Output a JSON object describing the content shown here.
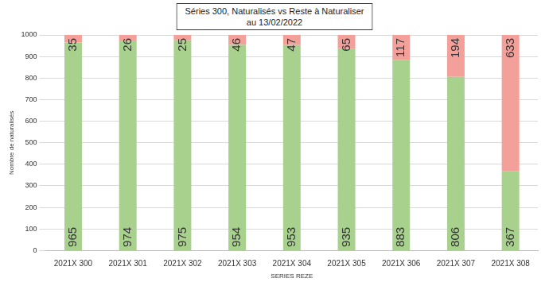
{
  "chart_data": {
    "type": "bar",
    "title": "Séries 300, Naturalisés vs Reste à Naturaliser",
    "subtitle": "au 13/02/2022",
    "x_label": "SERIES REZE",
    "y_label": "Nombre de naturalisés",
    "categories": [
      "2021X 300",
      "2021X 301",
      "2021X 302",
      "2021X 303",
      "2021X 304",
      "2021X 305",
      "2021X 306",
      "2021X 307",
      "2021X 308"
    ],
    "series": [
      {
        "color": "#a9d18e",
        "values": [
          965,
          974,
          975,
          954,
          953,
          935,
          883,
          806,
          367
        ]
      },
      {
        "color": "#f4a09a",
        "values": [
          35,
          26,
          25,
          46,
          47,
          65,
          117,
          194,
          633
        ]
      }
    ],
    "stacked": true,
    "data_labels": true,
    "grid": true,
    "ylim": [
      0,
      1000
    ],
    "yticks": [
      0,
      100,
      200,
      300,
      400,
      500,
      600,
      700,
      800,
      900,
      1000
    ]
  }
}
